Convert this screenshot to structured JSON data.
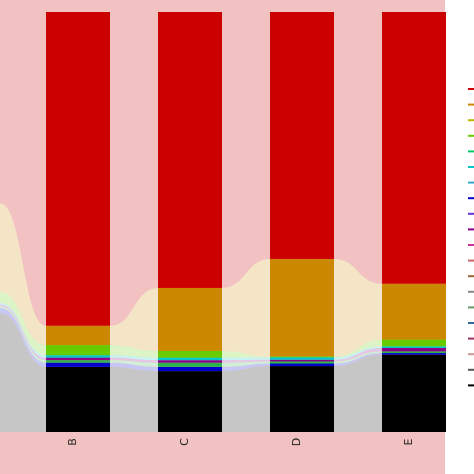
{
  "chart_data": {
    "type": "bar",
    "stacked": true,
    "normalized": true,
    "categories": [
      "B",
      "C",
      "D",
      "E"
    ],
    "ylim": [
      0,
      1
    ],
    "grid": false,
    "legend": "right",
    "series": [
      {
        "color": "#000000",
        "values": [
          0.155,
          0.145,
          0.157,
          0.184
        ]
      },
      {
        "color": "#0000cc",
        "values": [
          0.01,
          0.01,
          0.006,
          0.004
        ]
      },
      {
        "color": "#2db54b",
        "values": [
          0.006,
          0.01,
          0.005,
          0.004
        ]
      },
      {
        "color": "#8b008b",
        "values": [
          0.006,
          0.006,
          0.004,
          0.008
        ]
      },
      {
        "color": "#00c8c8",
        "values": [
          0.006,
          0.006,
          0.006,
          0.004
        ]
      },
      {
        "color": "#66cc00",
        "values": [
          0.024,
          0.016,
          0.002,
          0.016
        ]
      },
      {
        "color": "#cc8800",
        "values": [
          0.046,
          0.15,
          0.232,
          0.133
        ]
      },
      {
        "color": "#cc0000",
        "values": [
          0.747,
          0.657,
          0.588,
          0.647
        ]
      }
    ],
    "legend_swatches": [
      "#cc0000",
      "#cc8800",
      "#b8b800",
      "#66cc00",
      "#00cc66",
      "#00c8c8",
      "#33aacc",
      "#0000cc",
      "#6633cc",
      "#8b008b",
      "#cc3399",
      "#cc6666",
      "#996633",
      "#888888",
      "#669966",
      "#336699",
      "#993366",
      "#cc9999",
      "#555555",
      "#000000"
    ]
  }
}
